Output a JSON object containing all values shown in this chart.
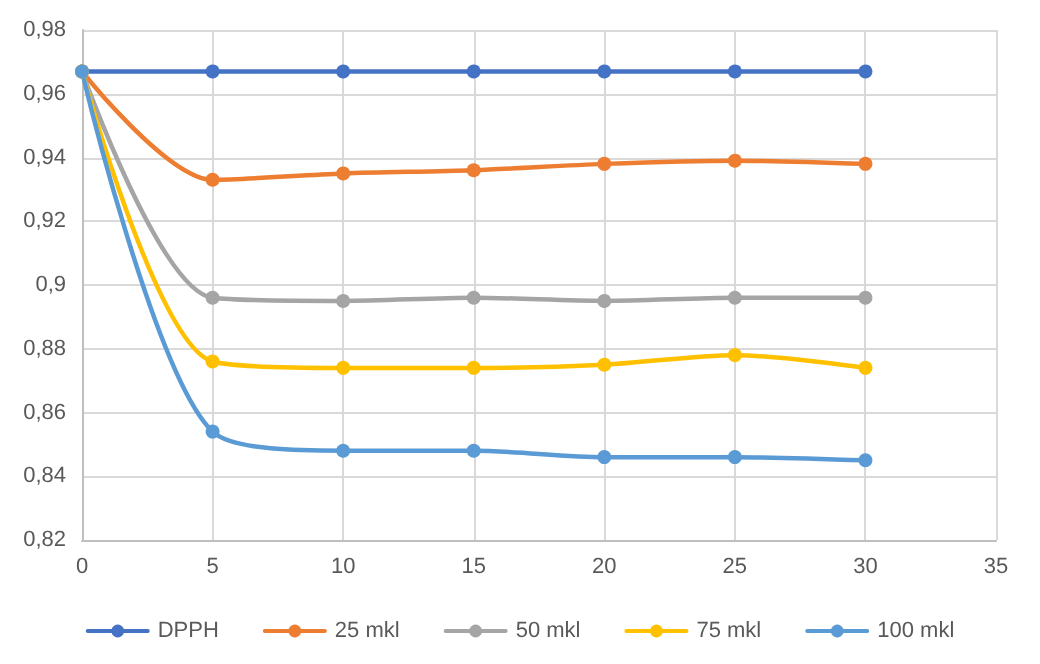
{
  "chart_data": {
    "type": "line",
    "x": [
      0,
      5,
      10,
      15,
      20,
      25,
      30
    ],
    "series": [
      {
        "name": "DPPH",
        "color": "#4472c4",
        "values": [
          0.967,
          0.967,
          0.967,
          0.967,
          0.967,
          0.967,
          0.967
        ]
      },
      {
        "name": "25 mkl",
        "color": "#ed7d31",
        "values": [
          0.967,
          0.933,
          0.935,
          0.936,
          0.938,
          0.939,
          0.938
        ]
      },
      {
        "name": "50 mkl",
        "color": "#a5a5a5",
        "values": [
          0.967,
          0.896,
          0.895,
          0.896,
          0.895,
          0.896,
          0.896
        ]
      },
      {
        "name": "75 mkl",
        "color": "#ffc000",
        "values": [
          0.967,
          0.876,
          0.874,
          0.874,
          0.875,
          0.878,
          0.874
        ]
      },
      {
        "name": "100 mkl",
        "color": "#5b9bd5",
        "values": [
          0.967,
          0.854,
          0.848,
          0.848,
          0.846,
          0.846,
          0.845
        ]
      }
    ],
    "xlim": [
      0,
      35
    ],
    "xticks": [
      0,
      5,
      10,
      15,
      20,
      25,
      30,
      35
    ],
    "ylim": [
      0.82,
      0.98
    ],
    "yticks": [
      {
        "value": 0.82,
        "label": "0,82"
      },
      {
        "value": 0.84,
        "label": "0,84"
      },
      {
        "value": 0.86,
        "label": "0,86"
      },
      {
        "value": 0.88,
        "label": "0,88"
      },
      {
        "value": 0.9,
        "label": "0,9"
      },
      {
        "value": 0.92,
        "label": "0,92"
      },
      {
        "value": 0.94,
        "label": "0,94"
      },
      {
        "value": 0.96,
        "label": "0,96"
      },
      {
        "value": 0.98,
        "label": "0,98"
      }
    ],
    "grid": true,
    "legend": "bottom",
    "marker": "circle",
    "line_style": "solid"
  }
}
